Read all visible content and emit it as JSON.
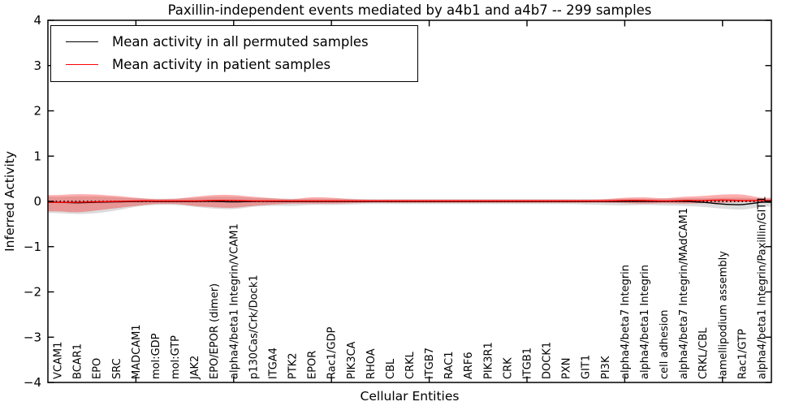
{
  "figure": {
    "title": "Paxillin-independent events mediated by a4b1 and a4b7 -- 299 samples",
    "xlabel": "Cellular Entities",
    "ylabel": "Inferred Activity"
  },
  "legend": {
    "items": [
      {
        "label": "Mean activity in all permuted samples",
        "color": "#000000"
      },
      {
        "label": "Mean activity in patient samples",
        "color": "#ff0000"
      }
    ]
  },
  "chart_data": {
    "type": "line",
    "title": "Paxillin-independent events mediated by a4b1 and a4b7 -- 299 samples",
    "xlabel": "Cellular Entities",
    "ylabel": "Inferred Activity",
    "ylim": [
      -4,
      4
    ],
    "yticks": [
      4,
      3,
      2,
      1,
      0,
      -1,
      -2,
      -3,
      -4
    ],
    "x_major_tick_indices": [
      4,
      9,
      14,
      19,
      24,
      29,
      34
    ],
    "grid": false,
    "legend_position": "upper left",
    "zero_line": {
      "style": "dotted",
      "color": "#000000",
      "y": 0
    },
    "categories": [
      "VCAM1",
      "BCAR1",
      "EPO",
      "SRC",
      "MADCAM1",
      "mol:GDP",
      "mol:GTP",
      "JAK2",
      "EPO/EPOR (dimer)",
      "alpha4/beta1 Integrin/VCAM1",
      "p130Cas/Crk/Dock1",
      "ITGA4",
      "PTK2",
      "EPOR",
      "Rac1/GDP",
      "PIK3CA",
      "RHOA",
      "CBL",
      "CRKL",
      "ITGB7",
      "RAC1",
      "ARF6",
      "PIK3R1",
      "CRK",
      "ITGB1",
      "DOCK1",
      "PXN",
      "GIT1",
      "PI3K",
      "alpha4/beta7 Integrin",
      "alpha4/beta1 Integrin",
      "cell adhesion",
      "alpha4/beta7 Integrin/MAdCAM1",
      "CRKL/CBL",
      "lamellipodium assembly",
      "Rac1/GTP",
      "alpha4/beta1 Integrin/Paxillin/GIT1"
    ],
    "series": [
      {
        "name": "Mean activity in all permuted samples",
        "color": "#000000",
        "style": "solid",
        "values": [
          -0.02,
          -0.03,
          -0.02,
          -0.01,
          0,
          0,
          0,
          0,
          0,
          -0.01,
          0,
          0,
          0,
          0,
          0,
          0,
          0,
          0,
          0,
          0,
          0,
          0,
          0,
          0,
          0,
          0,
          0,
          0,
          0,
          0,
          0,
          0,
          0,
          -0.02,
          -0.06,
          -0.07,
          -0.02
        ]
      },
      {
        "name": "Mean activity in patient samples",
        "color": "#ff0000",
        "style": "solid",
        "values": [
          -0.02,
          -0.02,
          -0.01,
          0,
          0.01,
          0.01,
          0.01,
          0.01,
          0.02,
          0.02,
          0.01,
          0.01,
          0.01,
          0.01,
          0.01,
          0.01,
          0.01,
          0.01,
          0.01,
          0.01,
          0.01,
          0.01,
          0.01,
          0.01,
          0.01,
          0.01,
          0.01,
          0.01,
          0.01,
          0.02,
          0.02,
          0.01,
          0.02,
          0.02,
          0.03,
          0.02,
          0.02
        ]
      }
    ],
    "bands": [
      {
        "name": "permuted-samples-range",
        "color": "rgba(60,60,60,0.18)",
        "upper": [
          0.1,
          0.11,
          0.11,
          0.09,
          0.07,
          0.06,
          0.06,
          0.08,
          0.1,
          0.1,
          0.08,
          0.07,
          0.06,
          0.06,
          0.06,
          0.06,
          0.05,
          0.05,
          0.05,
          0.05,
          0.05,
          0.05,
          0.05,
          0.05,
          0.05,
          0.05,
          0.05,
          0.05,
          0.05,
          0.06,
          0.06,
          0.06,
          0.07,
          0.07,
          0.08,
          0.08,
          0.06
        ],
        "lower": [
          -0.26,
          -0.28,
          -0.26,
          -0.2,
          -0.12,
          -0.08,
          -0.08,
          -0.12,
          -0.16,
          -0.17,
          -0.12,
          -0.1,
          -0.1,
          -0.08,
          -0.08,
          -0.07,
          -0.06,
          -0.06,
          -0.06,
          -0.06,
          -0.06,
          -0.06,
          -0.06,
          -0.06,
          -0.06,
          -0.06,
          -0.06,
          -0.07,
          -0.08,
          -0.09,
          -0.08,
          -0.09,
          -0.1,
          -0.12,
          -0.16,
          -0.18,
          -0.12
        ]
      },
      {
        "name": "patient-samples-range",
        "color": "rgba(255,0,0,0.32)",
        "upper": [
          0.14,
          0.16,
          0.15,
          0.12,
          0.08,
          0.05,
          0.06,
          0.1,
          0.14,
          0.14,
          0.1,
          0.07,
          0.05,
          0.09,
          0.08,
          0.05,
          0.04,
          0.04,
          0.04,
          0.04,
          0.04,
          0.04,
          0.04,
          0.04,
          0.04,
          0.04,
          0.04,
          0.04,
          0.05,
          0.08,
          0.09,
          0.07,
          0.1,
          0.12,
          0.15,
          0.15,
          0.08
        ],
        "lower": [
          -0.22,
          -0.24,
          -0.2,
          -0.15,
          -0.1,
          -0.06,
          -0.06,
          -0.1,
          -0.13,
          -0.14,
          -0.1,
          -0.07,
          -0.05,
          -0.05,
          -0.05,
          -0.04,
          -0.03,
          -0.03,
          -0.03,
          -0.03,
          -0.03,
          -0.03,
          -0.03,
          -0.03,
          -0.03,
          -0.03,
          -0.03,
          -0.03,
          -0.03,
          -0.04,
          -0.05,
          -0.04,
          -0.05,
          -0.04,
          -0.03,
          -0.02,
          -0.02
        ]
      }
    ]
  }
}
